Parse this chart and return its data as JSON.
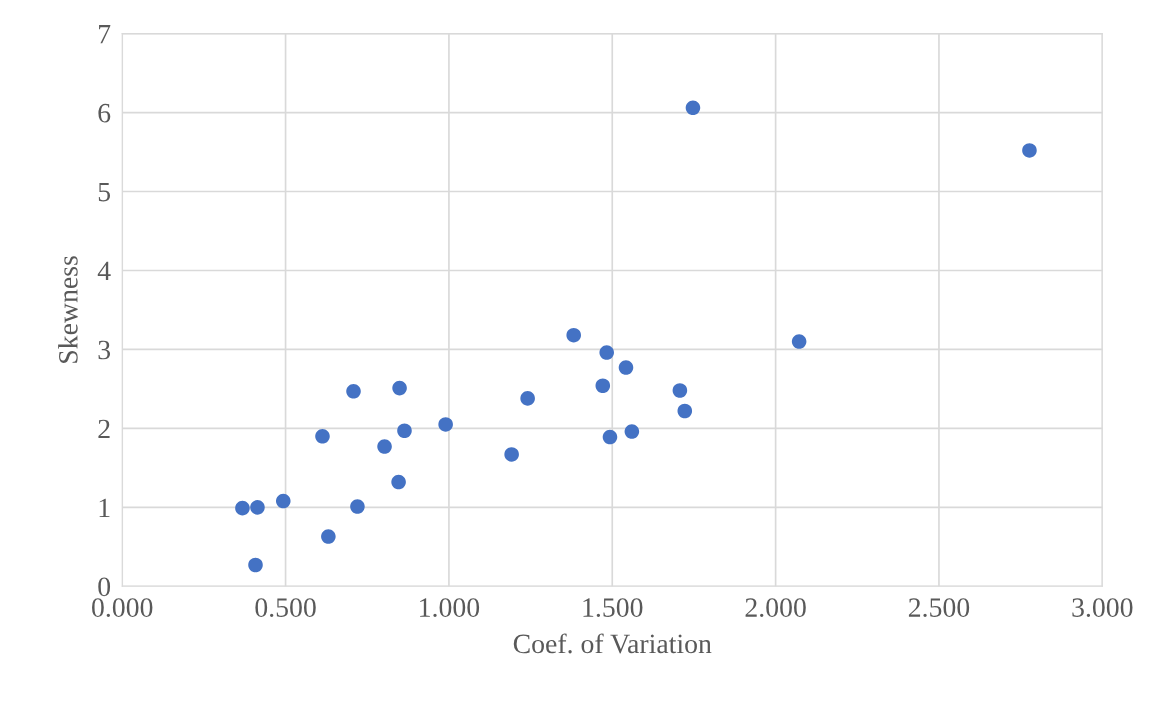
{
  "chart_data": {
    "type": "scatter",
    "xlabel": "Coef. of Variation",
    "ylabel": "Skewness",
    "xlim": [
      0,
      3
    ],
    "xticks": [
      {
        "value": 0,
        "label": "0.000"
      },
      {
        "value": 0.5,
        "label": "0.500"
      },
      {
        "value": 1,
        "label": "1.000"
      },
      {
        "value": 1.5,
        "label": "1.500"
      },
      {
        "value": 2,
        "label": "2.000"
      },
      {
        "value": 2.5,
        "label": "2.500"
      },
      {
        "value": 3,
        "label": "3.000"
      }
    ],
    "ylim": [
      0,
      7
    ],
    "yticks": [
      0,
      1,
      2,
      3,
      4,
      5,
      6,
      7
    ],
    "grid": true,
    "marker": "circle",
    "series": [
      {
        "color": "#4472c4",
        "x": [
          0.368,
          0.414,
          0.408,
          0.493,
          0.613,
          0.631,
          0.708,
          0.72,
          0.803,
          0.849,
          0.846,
          0.864,
          0.99,
          1.192,
          1.241,
          1.382,
          1.471,
          1.483,
          1.493,
          1.542,
          1.56,
          1.707,
          1.722,
          1.747,
          2.072,
          2.777
        ],
        "values": [
          0.99,
          1.0,
          0.27,
          1.08,
          1.9,
          0.63,
          2.47,
          1.01,
          1.77,
          2.51,
          1.32,
          1.97,
          2.05,
          1.67,
          2.38,
          3.18,
          2.54,
          2.96,
          1.89,
          2.77,
          1.96,
          2.48,
          2.22,
          6.06,
          3.1,
          5.52
        ]
      }
    ]
  }
}
